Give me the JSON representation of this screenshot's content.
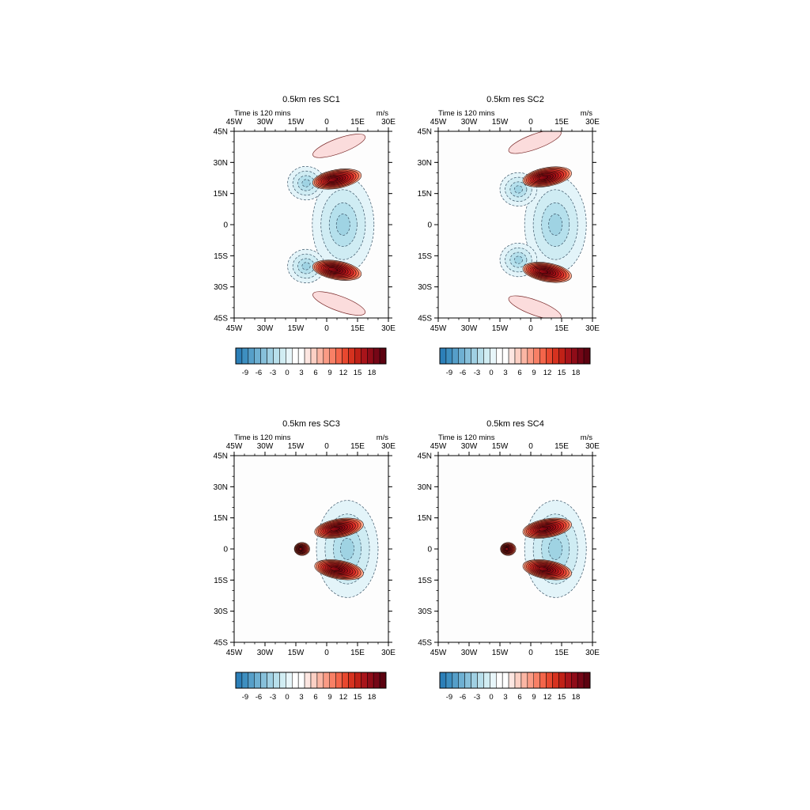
{
  "figure": {
    "time_label": "Time is 120 mins",
    "units_label": "m/s"
  },
  "chart_data": [
    {
      "type": "contour",
      "title": "0.5km res SC1",
      "x_ticks": [
        "45W",
        "30W",
        "15W",
        "0",
        "15E",
        "30E"
      ],
      "y_ticks": [
        "45N",
        "30N",
        "15N",
        "0",
        "15S",
        "30S",
        "45S"
      ],
      "xlim": [
        -45,
        30
      ],
      "ylim": [
        -45,
        45
      ],
      "colorbar": {
        "labels": [
          "-9",
          "-6",
          "-3",
          "0",
          "3",
          "6",
          "9",
          "12",
          "15",
          "18"
        ],
        "min": -11,
        "max": 20
      },
      "features": [
        {
          "lon": 5,
          "lat": 22,
          "value": 18,
          "kind": "jet"
        },
        {
          "lon": 5,
          "lat": -22,
          "value": 18,
          "kind": "jet"
        },
        {
          "lon": 6,
          "lat": 38,
          "value": 2,
          "kind": "band"
        },
        {
          "lon": 6,
          "lat": -38,
          "value": 2,
          "kind": "band"
        },
        {
          "lon": 8,
          "lat": 0,
          "value": -3,
          "kind": "trough"
        },
        {
          "lon": -10,
          "lat": 20,
          "value": -4,
          "kind": "trough"
        },
        {
          "lon": -10,
          "lat": -20,
          "value": -4,
          "kind": "trough"
        }
      ]
    },
    {
      "type": "contour",
      "title": "0.5km res SC2",
      "x_ticks": [
        "45W",
        "30W",
        "15W",
        "0",
        "15E",
        "30E"
      ],
      "y_ticks": [
        "45N",
        "30N",
        "15N",
        "0",
        "15S",
        "30S",
        "45S"
      ],
      "xlim": [
        -45,
        30
      ],
      "ylim": [
        -45,
        45
      ],
      "colorbar": {
        "labels": [
          "-9",
          "-6",
          "-3",
          "0",
          "3",
          "6",
          "9",
          "12",
          "15",
          "18"
        ],
        "min": -11,
        "max": 20
      },
      "features": [
        {
          "lon": 8,
          "lat": 23,
          "value": 18,
          "kind": "jet"
        },
        {
          "lon": 8,
          "lat": -23,
          "value": 18,
          "kind": "jet"
        },
        {
          "lon": 2,
          "lat": 40,
          "value": 4,
          "kind": "band"
        },
        {
          "lon": 2,
          "lat": -40,
          "value": 4,
          "kind": "band"
        },
        {
          "lon": 12,
          "lat": 0,
          "value": -4,
          "kind": "trough"
        },
        {
          "lon": -6,
          "lat": 17,
          "value": -5,
          "kind": "trough"
        },
        {
          "lon": -6,
          "lat": -17,
          "value": -5,
          "kind": "trough"
        }
      ]
    },
    {
      "type": "contour",
      "title": "0.5km res SC3",
      "x_ticks": [
        "45W",
        "30W",
        "15W",
        "0",
        "15E",
        "30E"
      ],
      "y_ticks": [
        "45N",
        "30N",
        "15N",
        "0",
        "15S",
        "30S",
        "45S"
      ],
      "xlim": [
        -45,
        30
      ],
      "ylim": [
        -45,
        45
      ],
      "colorbar": {
        "labels": [
          "-9",
          "-6",
          "-3",
          "0",
          "3",
          "6",
          "9",
          "12",
          "15",
          "18"
        ],
        "min": -11,
        "max": 20
      },
      "features": [
        {
          "lon": 6,
          "lat": 10,
          "value": 18,
          "kind": "jet"
        },
        {
          "lon": 6,
          "lat": -10,
          "value": 18,
          "kind": "jet"
        },
        {
          "lon": -12,
          "lat": 0,
          "value": 16,
          "kind": "core"
        },
        {
          "lon": 10,
          "lat": 0,
          "value": -5,
          "kind": "trough"
        }
      ]
    },
    {
      "type": "contour",
      "title": "0.5km res SC4",
      "x_ticks": [
        "45W",
        "30W",
        "15W",
        "0",
        "15E",
        "30E"
      ],
      "y_ticks": [
        "45N",
        "30N",
        "15N",
        "0",
        "15S",
        "30S",
        "45S"
      ],
      "xlim": [
        -45,
        30
      ],
      "ylim": [
        -45,
        45
      ],
      "colorbar": {
        "labels": [
          "-9",
          "-6",
          "-3",
          "0",
          "3",
          "6",
          "9",
          "12",
          "15",
          "18"
        ],
        "min": -11,
        "max": 20
      },
      "features": [
        {
          "lon": 8,
          "lat": 10,
          "value": 18,
          "kind": "jet"
        },
        {
          "lon": 8,
          "lat": -10,
          "value": 18,
          "kind": "jet"
        },
        {
          "lon": -11,
          "lat": 0,
          "value": 14,
          "kind": "core"
        },
        {
          "lon": 12,
          "lat": 0,
          "value": -5,
          "kind": "trough"
        }
      ]
    }
  ]
}
